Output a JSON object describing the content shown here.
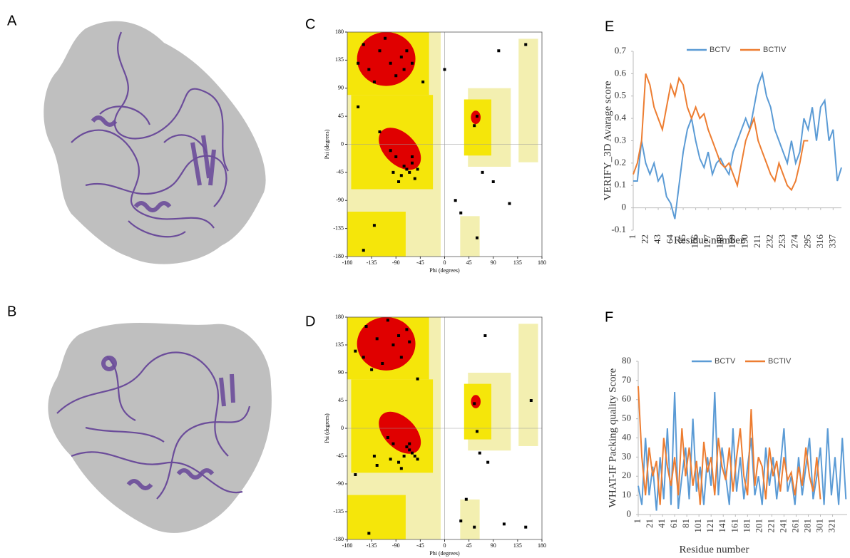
{
  "structure_panels": [
    {
      "label": "A"
    },
    {
      "label": "B"
    }
  ],
  "chart_data": [
    {
      "type": "scatter",
      "label": "C",
      "x_label": "Phi (degrees)",
      "y_label": "Psi (degrees)",
      "color": "#000000",
      "x": [
        -150,
        -120,
        -100,
        -80,
        -140,
        -110,
        -70,
        -90,
        -160,
        -60,
        -130,
        -75,
        -70,
        -60,
        -80,
        -65,
        -90,
        -55,
        -100,
        -75,
        -85,
        -50,
        -60,
        -95,
        60,
        55,
        90,
        70,
        100,
        150,
        -150,
        -130,
        -160,
        -120,
        20,
        30,
        -40,
        60,
        120,
        0
      ],
      "y": [
        160,
        150,
        130,
        140,
        120,
        170,
        150,
        110,
        130,
        130,
        100,
        120,
        -40,
        -30,
        -50,
        -45,
        -20,
        -55,
        -10,
        -35,
        -60,
        -40,
        -20,
        -45,
        45,
        30,
        -60,
        -45,
        150,
        160,
        -170,
        -130,
        60,
        20,
        -90,
        -110,
        100,
        -150,
        -95,
        120
      ],
      "xlim": [
        -180,
        180
      ],
      "ylim": [
        -180,
        180
      ],
      "xticks": [
        -180,
        -135,
        -90,
        -45,
        0,
        45,
        90,
        135,
        180
      ],
      "yticks": [
        -180,
        -135,
        -90,
        -45,
        0,
        45,
        90,
        135,
        180
      ]
    },
    {
      "type": "scatter",
      "label": "D",
      "x_label": "Phi (degrees)",
      "y_label": "Psi (degrees)",
      "color": "#000000",
      "x": [
        -145,
        -125,
        -95,
        -85,
        -150,
        -105,
        -65,
        -115,
        -165,
        -70,
        -135,
        -80,
        -75,
        -65,
        -85,
        -60,
        -95,
        -50,
        -105,
        -70,
        -80,
        -55,
        -65,
        -100,
        55,
        60,
        80,
        65,
        75,
        160,
        -140,
        -125,
        -165,
        -130,
        40,
        30,
        -50,
        55,
        110,
        150
      ],
      "y": [
        165,
        145,
        135,
        150,
        115,
        175,
        140,
        105,
        125,
        160,
        95,
        115,
        -45,
        -35,
        -55,
        -40,
        -25,
        -50,
        -15,
        -30,
        -65,
        -45,
        -25,
        -50,
        40,
        -5,
        -55,
        -40,
        150,
        45,
        -170,
        -60,
        -75,
        -45,
        -115,
        -150,
        80,
        -160,
        -155,
        -160
      ],
      "xlim": [
        -180,
        180
      ],
      "ylim": [
        -180,
        180
      ],
      "xticks": [
        -180,
        -135,
        -90,
        -45,
        0,
        45,
        90,
        135,
        180
      ],
      "yticks": [
        -180,
        -135,
        -90,
        -45,
        0,
        45,
        90,
        135,
        180
      ]
    },
    {
      "type": "line",
      "label": "E",
      "x_label": "Residue number",
      "y_label": "VERIFY_3D Avarage score",
      "x": [
        1,
        8,
        15,
        22,
        29,
        36,
        43,
        50,
        57,
        64,
        71,
        78,
        85,
        92,
        99,
        106,
        113,
        120,
        127,
        134,
        141,
        148,
        155,
        162,
        169,
        176,
        183,
        190,
        197,
        204,
        211,
        218,
        225,
        232,
        239,
        246,
        253,
        260,
        267,
        274,
        281,
        288,
        295,
        302,
        309,
        316,
        323,
        330,
        337,
        344,
        351
      ],
      "series": [
        {
          "name": "BCTV",
          "color": "#5b9bd5",
          "values": [
            0.12,
            0.12,
            0.3,
            0.2,
            0.15,
            0.2,
            0.12,
            0.15,
            0.05,
            0.02,
            -0.05,
            0.1,
            0.25,
            0.35,
            0.4,
            0.3,
            0.22,
            0.18,
            0.25,
            0.15,
            0.2,
            0.22,
            0.18,
            0.15,
            0.25,
            0.3,
            0.35,
            0.4,
            0.35,
            0.45,
            0.55,
            0.6,
            0.5,
            0.45,
            0.35,
            0.3,
            0.25,
            0.2,
            0.3,
            0.2,
            0.25,
            0.4,
            0.35,
            0.45,
            0.3,
            0.45,
            0.48,
            0.3,
            0.35,
            0.12,
            0.18
          ]
        },
        {
          "name": "BCTIV",
          "color": "#ed7d31",
          "values": [
            0.15,
            0.2,
            0.3,
            0.6,
            0.55,
            0.45,
            0.4,
            0.35,
            0.45,
            0.55,
            0.5,
            0.58,
            0.55,
            0.45,
            0.4,
            0.45,
            0.4,
            0.42,
            0.35,
            0.3,
            0.25,
            0.2,
            0.18,
            0.2,
            0.15,
            0.1,
            0.2,
            0.3,
            0.35,
            0.4,
            0.3,
            0.25,
            0.2,
            0.15,
            0.12,
            0.2,
            0.15,
            0.1,
            0.08,
            0.12,
            0.2,
            0.3,
            0.3,
            null,
            null,
            null,
            null,
            null,
            null,
            null,
            null
          ]
        }
      ],
      "xlim": [
        1,
        351
      ],
      "ylim": [
        -0.1,
        0.7
      ],
      "xticks": [
        1,
        22,
        43,
        64,
        85,
        106,
        127,
        148,
        169,
        190,
        211,
        232,
        253,
        274,
        295,
        316,
        337
      ],
      "yticks": [
        -0.1,
        0,
        0.1,
        0.2,
        0.3,
        0.4,
        0.5,
        0.6,
        0.7
      ]
    },
    {
      "type": "line",
      "label": "F",
      "x_label": "Residue number",
      "y_label": "WHAT-IF Packing quality Score",
      "x": [
        1,
        7,
        13,
        19,
        25,
        31,
        37,
        43,
        49,
        55,
        61,
        67,
        73,
        79,
        85,
        91,
        97,
        103,
        109,
        115,
        121,
        127,
        133,
        139,
        145,
        151,
        157,
        163,
        169,
        175,
        181,
        187,
        193,
        199,
        205,
        211,
        217,
        223,
        229,
        235,
        241,
        247,
        253,
        259,
        265,
        271,
        277,
        283,
        289,
        295,
        301,
        307,
        313,
        319,
        325,
        331,
        337,
        343
      ],
      "series": [
        {
          "name": "BCTV",
          "color": "#5b9bd5",
          "values": [
            15,
            5,
            40,
            10,
            25,
            2,
            30,
            8,
            45,
            5,
            64,
            3,
            20,
            35,
            8,
            50,
            12,
            25,
            5,
            30,
            15,
            64,
            10,
            35,
            20,
            5,
            45,
            12,
            30,
            8,
            25,
            40,
            10,
            20,
            5,
            35,
            15,
            30,
            8,
            25,
            45,
            12,
            20,
            5,
            30,
            10,
            25,
            40,
            8,
            20,
            35,
            5,
            45,
            10,
            30,
            5,
            40,
            8
          ]
        },
        {
          "name": "BCTIV",
          "color": "#ed7d31",
          "values": [
            67,
            30,
            10,
            35,
            20,
            28,
            5,
            40,
            25,
            15,
            30,
            10,
            45,
            20,
            35,
            15,
            28,
            5,
            38,
            22,
            30,
            10,
            40,
            25,
            18,
            35,
            12,
            30,
            45,
            20,
            10,
            55,
            15,
            30,
            25,
            8,
            35,
            20,
            28,
            12,
            30,
            18,
            22,
            10,
            25,
            15,
            35,
            20,
            12,
            30,
            8,
            null,
            null,
            null,
            null,
            null,
            null,
            null
          ]
        }
      ],
      "xlim": [
        1,
        345
      ],
      "ylim": [
        0,
        80
      ],
      "xticks": [
        1,
        21,
        41,
        61,
        81,
        101,
        121,
        141,
        161,
        181,
        201,
        221,
        241,
        261,
        281,
        301,
        321
      ],
      "yticks": [
        0,
        10,
        20,
        30,
        40,
        50,
        60,
        70,
        80
      ]
    }
  ]
}
